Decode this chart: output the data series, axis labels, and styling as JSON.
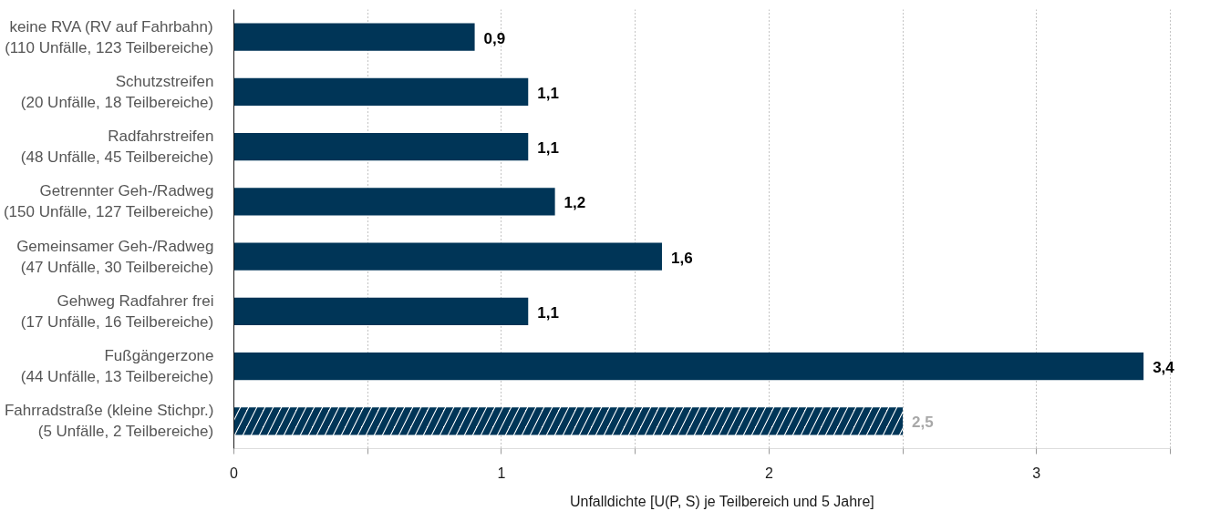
{
  "chart_data": {
    "type": "bar",
    "orientation": "horizontal",
    "categories": [
      "keine RVA (RV auf Fahrbahn)\n(110 Unfälle, 123 Teilbereiche)",
      "Schutzstreifen\n(20 Unfälle, 18 Teilbereiche)",
      "Radfahrstreifen\n(48 Unfälle, 45 Teilbereiche)",
      "Getrennter Geh-/Radweg\n(150 Unfälle, 127 Teilbereiche)",
      "Gemeinsamer Geh-/Radweg\n(47 Unfälle, 30 Teilbereiche)",
      "Gehweg Radfahrer frei\n(17 Unfälle, 16 Teilbereiche)",
      "Fußgängerzone\n(44 Unfälle, 13 Teilbereiche)",
      "Fahrradstraße (kleine Stichpr.)\n(5 Unfälle, 2 Teilbereiche)"
    ],
    "series": [
      {
        "color": "#003557",
        "values": [
          0.9,
          1.1,
          1.1,
          1.2,
          1.6,
          1.1,
          3.4,
          null
        ],
        "value_labels": [
          "0,9",
          "1,1",
          "1,1",
          "1,2",
          "1,6",
          "1,1",
          "3,4",
          null
        ]
      },
      {
        "color": "#003557",
        "values": [
          null,
          null,
          null,
          null,
          null,
          null,
          null,
          2.5
        ],
        "value_labels": [
          null,
          null,
          null,
          null,
          null,
          null,
          null,
          "2,5"
        ]
      }
    ],
    "xlabel": "Unfalldichte [U(P, S) je Teilbereich und 5 Jahre]",
    "xlim": [
      0,
      3.5
    ],
    "xticks": [
      0,
      {
        "value": 0.5,
        "label": null
      },
      1,
      {
        "value": 1.5,
        "label": null
      },
      2,
      {
        "value": 2.5,
        "label": null
      },
      3,
      {
        "value": 3.5,
        "label": null
      }
    ],
    "grid": "x"
  }
}
